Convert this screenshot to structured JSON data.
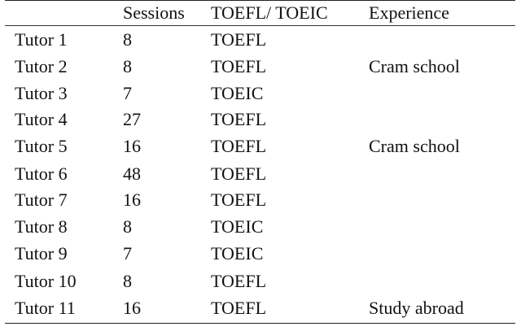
{
  "table": {
    "headers": [
      "",
      "Sessions",
      "TOEFL/ TOEIC",
      "Experience"
    ],
    "rows": [
      [
        "Tutor 1",
        "8",
        "TOEFL",
        ""
      ],
      [
        "Tutor 2",
        "8",
        "TOEFL",
        "Cram school"
      ],
      [
        "Tutor 3",
        "7",
        "TOEIC",
        ""
      ],
      [
        "Tutor 4",
        "27",
        "TOEFL",
        ""
      ],
      [
        "Tutor 5",
        "16",
        "TOEFL",
        "Cram school"
      ],
      [
        "Tutor 6",
        "48",
        "TOEFL",
        ""
      ],
      [
        "Tutor 7",
        "16",
        "TOEFL",
        ""
      ],
      [
        "Tutor 8",
        "8",
        "TOEIC",
        ""
      ],
      [
        "Tutor 9",
        "7",
        "TOEIC",
        ""
      ],
      [
        "Tutor 10",
        "8",
        "TOEFL",
        ""
      ],
      [
        "Tutor 11",
        "16",
        "TOEFL",
        "Study abroad"
      ]
    ]
  }
}
